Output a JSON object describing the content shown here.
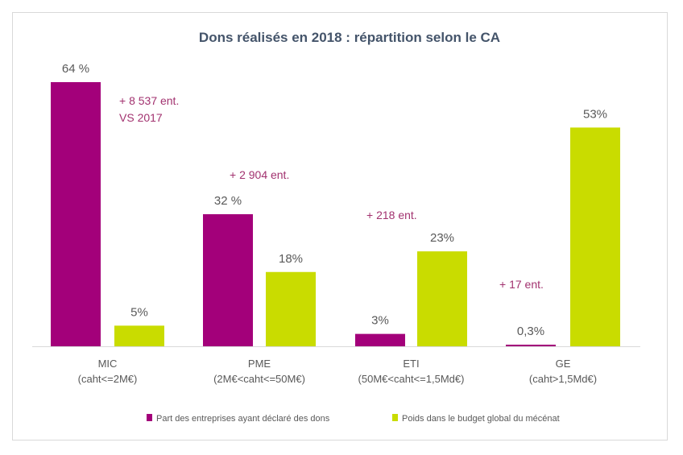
{
  "chart_data": {
    "type": "bar",
    "title": "Dons réalisés en 2018 : répartition selon le CA",
    "categories": [
      {
        "name": "MIC",
        "sub": "(caht<=2M€)"
      },
      {
        "name": "PME",
        "sub": "(2M€<caht<=50M€)"
      },
      {
        "name": "ETI",
        "sub": "(50M€<caht<=1,5Md€)"
      },
      {
        "name": "GE",
        "sub": "(caht>1,5Md€)"
      }
    ],
    "series": [
      {
        "name": "Part des entreprises ayant déclaré des dons",
        "color": "#a3007a",
        "values": [
          64,
          32,
          3,
          0.3
        ],
        "labels": [
          "64 %",
          "32 %",
          "3%",
          "0,3%"
        ]
      },
      {
        "name": "Poids dans le budget global du mécénat",
        "color": "#c9dc00",
        "values": [
          5,
          18,
          23,
          53
        ],
        "labels": [
          "5%",
          "18%",
          "23%",
          "53%"
        ]
      }
    ],
    "annotations": [
      [
        "+ 8 537 ent.",
        "VS 2017"
      ],
      [
        "+ 2 904 ent."
      ],
      [
        "+ 218 ent."
      ],
      [
        "+ 17 ent."
      ]
    ],
    "annotation_color": "#a2326f",
    "ylim": [
      0,
      64
    ],
    "grid": false,
    "legend_position": "bottom"
  }
}
